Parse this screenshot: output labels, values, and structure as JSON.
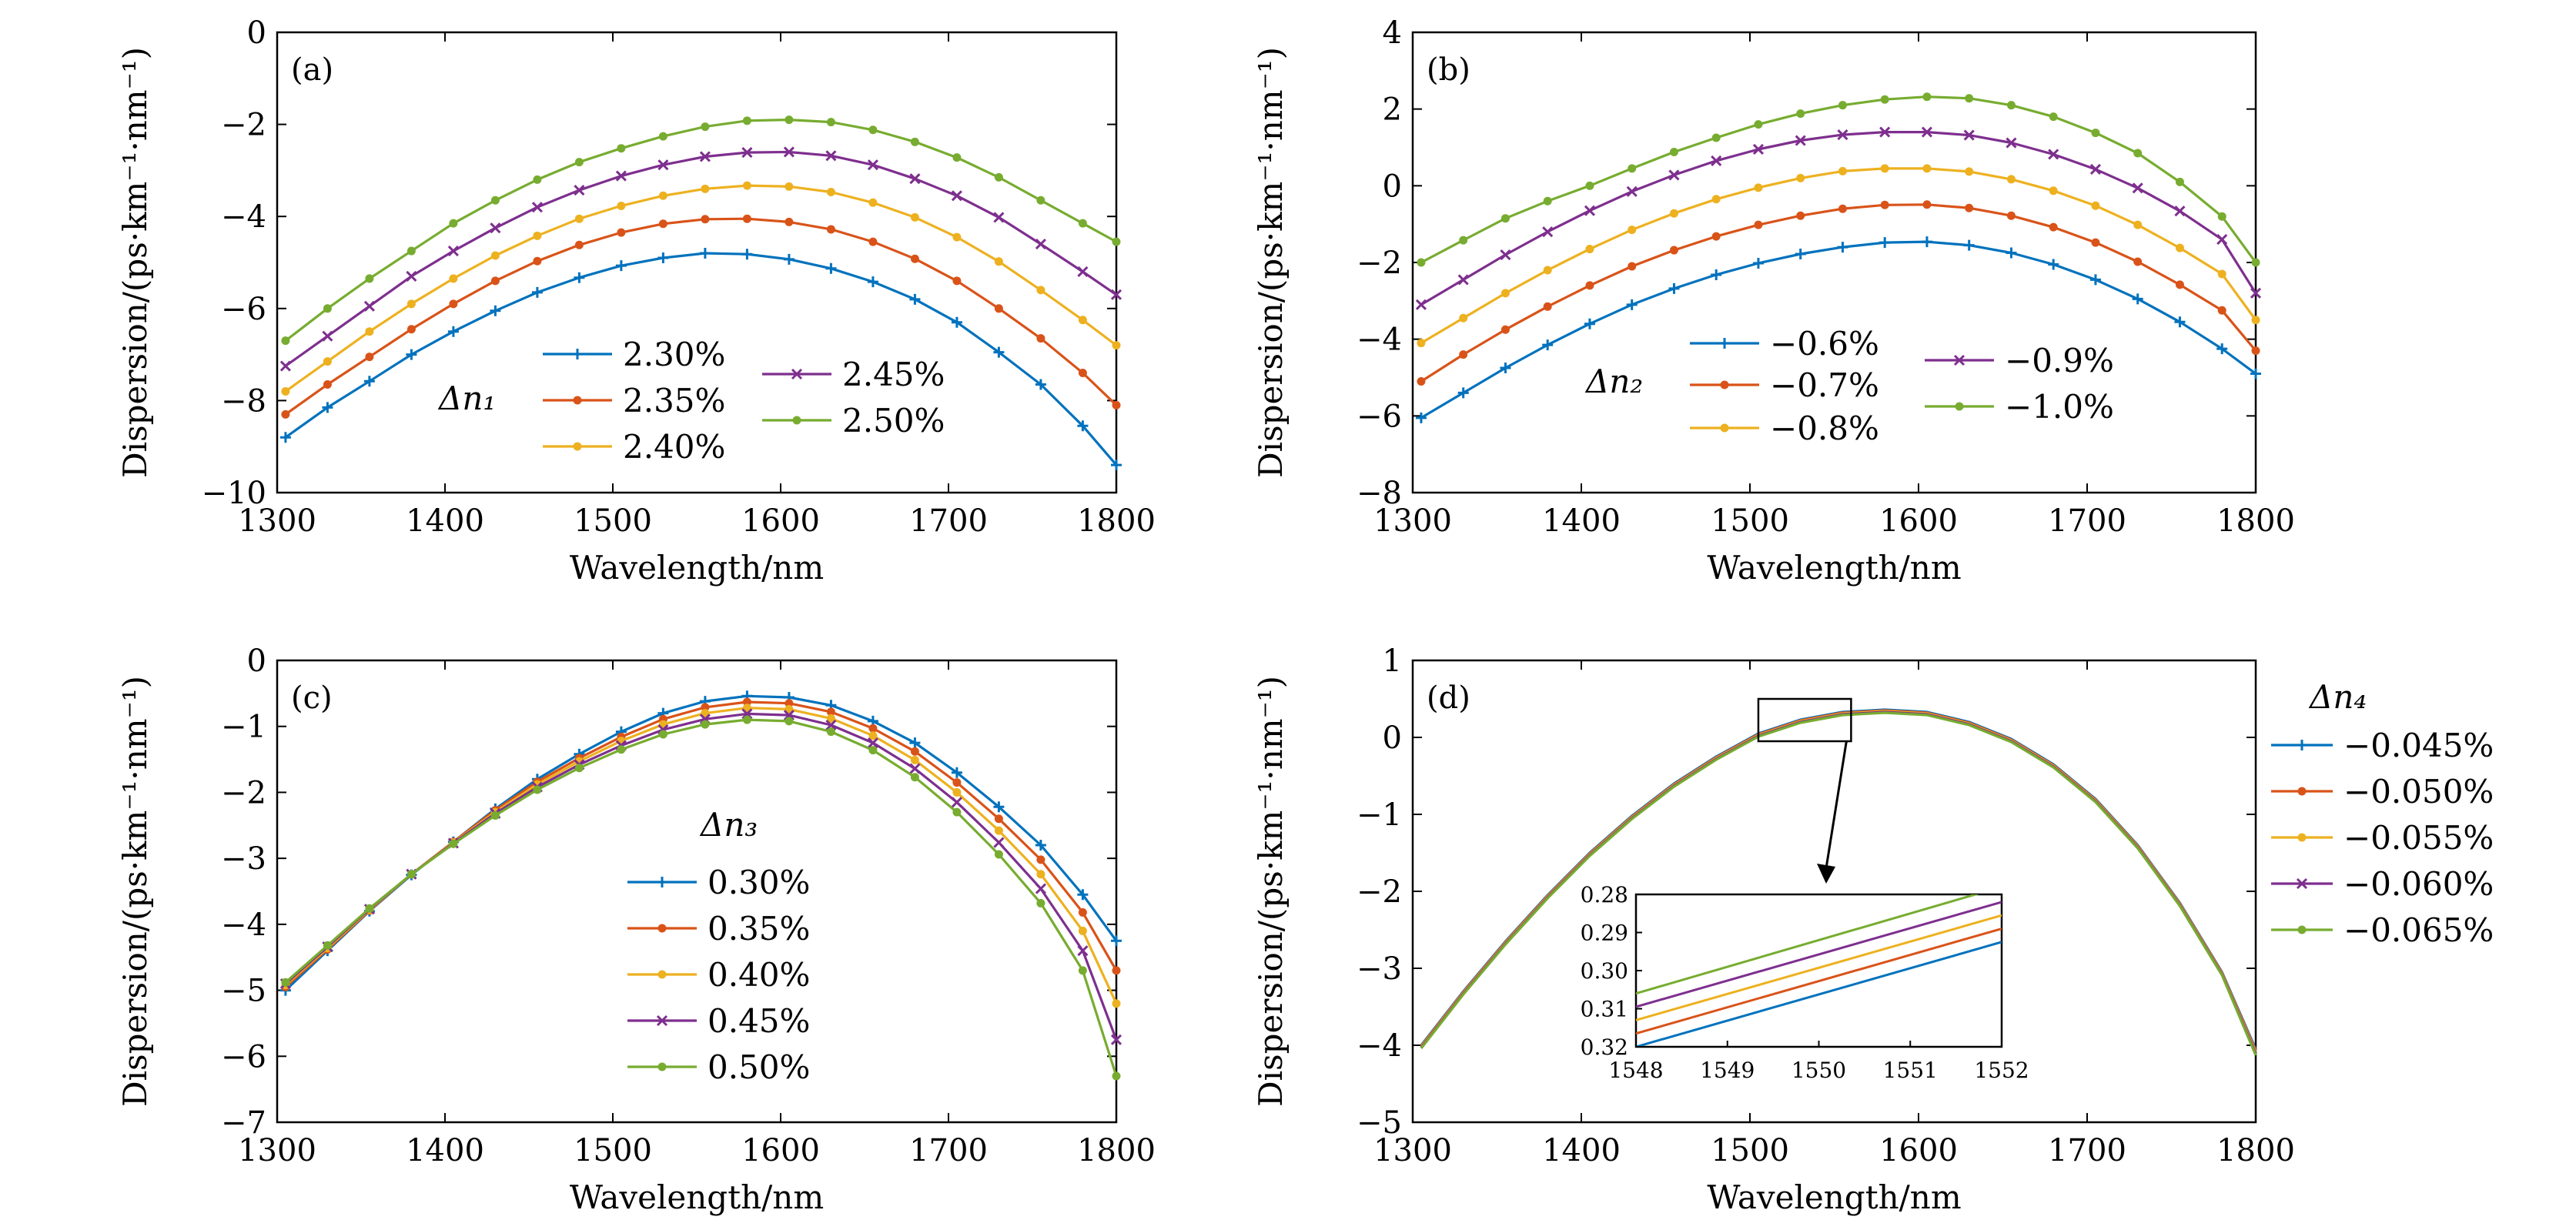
{
  "chart_data": [
    {
      "type": "line",
      "panel_label": "(a)",
      "xlabel": "Wavelength/nm",
      "ylabel": "Dispersion/(ps·km⁻¹·nm⁻¹)",
      "xlim": [
        1300,
        1800
      ],
      "ylim": [
        -10,
        0
      ],
      "xticks": [
        1300,
        1400,
        1500,
        1600,
        1700,
        1800
      ],
      "yticks": [
        0,
        -2,
        -4,
        -6,
        -8,
        -10
      ],
      "grid": false,
      "legend": {
        "title": "Δn₁",
        "columns": 2,
        "placement": "lower-center"
      },
      "x": [
        1305,
        1330,
        1355,
        1380,
        1405,
        1430,
        1455,
        1480,
        1505,
        1530,
        1555,
        1580,
        1605,
        1630,
        1655,
        1680,
        1705,
        1730,
        1755,
        1780,
        1800
      ],
      "series": [
        {
          "name": "2.30%",
          "color": "#0072BD",
          "marker": "plus",
          "values": [
            -8.8,
            -8.15,
            -7.58,
            -7.0,
            -6.5,
            -6.05,
            -5.65,
            -5.33,
            -5.07,
            -4.9,
            -4.8,
            -4.82,
            -4.93,
            -5.13,
            -5.42,
            -5.8,
            -6.3,
            -6.95,
            -7.65,
            -8.55,
            -9.4
          ]
        },
        {
          "name": "2.35%",
          "color": "#D95319",
          "marker": "dot",
          "values": [
            -8.3,
            -7.65,
            -7.05,
            -6.45,
            -5.9,
            -5.4,
            -4.97,
            -4.62,
            -4.35,
            -4.16,
            -4.06,
            -4.05,
            -4.12,
            -4.28,
            -4.55,
            -4.92,
            -5.4,
            -6.0,
            -6.65,
            -7.4,
            -8.1
          ]
        },
        {
          "name": "2.40%",
          "color": "#EDB120",
          "marker": "dot",
          "values": [
            -7.8,
            -7.15,
            -6.5,
            -5.9,
            -5.35,
            -4.85,
            -4.42,
            -4.05,
            -3.77,
            -3.55,
            -3.4,
            -3.33,
            -3.35,
            -3.47,
            -3.7,
            -4.02,
            -4.45,
            -4.98,
            -5.6,
            -6.25,
            -6.8
          ]
        },
        {
          "name": "2.45%",
          "color": "#7E2F8E",
          "marker": "x",
          "values": [
            -7.25,
            -6.6,
            -5.95,
            -5.3,
            -4.75,
            -4.25,
            -3.8,
            -3.43,
            -3.12,
            -2.88,
            -2.7,
            -2.61,
            -2.6,
            -2.68,
            -2.88,
            -3.18,
            -3.55,
            -4.02,
            -4.6,
            -5.2,
            -5.7
          ]
        },
        {
          "name": "2.50%",
          "color": "#77AC30",
          "marker": "dot",
          "values": [
            -6.7,
            -6.0,
            -5.35,
            -4.75,
            -4.15,
            -3.65,
            -3.2,
            -2.82,
            -2.52,
            -2.26,
            -2.05,
            -1.92,
            -1.9,
            -1.95,
            -2.12,
            -2.38,
            -2.72,
            -3.15,
            -3.65,
            -4.15,
            -4.55
          ]
        }
      ]
    },
    {
      "type": "line",
      "panel_label": "(b)",
      "xlabel": "Wavelength/nm",
      "ylabel": "Dispersion/(ps·km⁻¹·nm⁻¹)",
      "xlim": [
        1300,
        1800
      ],
      "ylim": [
        -8,
        4
      ],
      "xticks": [
        1300,
        1400,
        1500,
        1600,
        1700,
        1800
      ],
      "yticks": [
        4,
        2,
        0,
        -2,
        -4,
        -6,
        -8
      ],
      "grid": false,
      "legend": {
        "title": "Δn₂",
        "columns": 2,
        "placement": "lower-center"
      },
      "x": [
        1305,
        1330,
        1355,
        1380,
        1405,
        1430,
        1455,
        1480,
        1505,
        1530,
        1555,
        1580,
        1605,
        1630,
        1655,
        1680,
        1705,
        1730,
        1755,
        1780,
        1800
      ],
      "series": [
        {
          "name": "−0.6%",
          "color": "#0072BD",
          "marker": "plus",
          "values": [
            -6.05,
            -5.4,
            -4.75,
            -4.15,
            -3.6,
            -3.1,
            -2.68,
            -2.32,
            -2.02,
            -1.78,
            -1.6,
            -1.48,
            -1.46,
            -1.55,
            -1.75,
            -2.05,
            -2.45,
            -2.95,
            -3.55,
            -4.25,
            -4.9
          ]
        },
        {
          "name": "−0.7%",
          "color": "#D95319",
          "marker": "dot",
          "values": [
            -5.1,
            -4.4,
            -3.75,
            -3.15,
            -2.6,
            -2.1,
            -1.68,
            -1.32,
            -1.02,
            -0.78,
            -0.6,
            -0.5,
            -0.49,
            -0.58,
            -0.78,
            -1.08,
            -1.48,
            -1.98,
            -2.58,
            -3.25,
            -4.3
          ]
        },
        {
          "name": "−0.8%",
          "color": "#EDB120",
          "marker": "dot",
          "values": [
            -4.1,
            -3.45,
            -2.8,
            -2.2,
            -1.65,
            -1.15,
            -0.72,
            -0.35,
            -0.05,
            0.2,
            0.38,
            0.45,
            0.45,
            0.37,
            0.17,
            -0.13,
            -0.52,
            -1.02,
            -1.62,
            -2.3,
            -3.5
          ]
        },
        {
          "name": "−0.9%",
          "color": "#7E2F8E",
          "marker": "x",
          "values": [
            -3.1,
            -2.45,
            -1.8,
            -1.2,
            -0.65,
            -0.15,
            0.28,
            0.65,
            0.95,
            1.18,
            1.33,
            1.4,
            1.4,
            1.32,
            1.12,
            0.82,
            0.43,
            -0.06,
            -0.66,
            -1.4,
            -2.8
          ]
        },
        {
          "name": "−1.0%",
          "color": "#77AC30",
          "marker": "dot",
          "values": [
            -2.0,
            -1.42,
            -0.85,
            -0.4,
            0.0,
            0.45,
            0.88,
            1.25,
            1.6,
            1.88,
            2.1,
            2.25,
            2.32,
            2.28,
            2.1,
            1.8,
            1.38,
            0.85,
            0.1,
            -0.8,
            -2.0
          ]
        }
      ]
    },
    {
      "type": "line",
      "panel_label": "(c)",
      "xlabel": "Wavelength/nm",
      "ylabel": "Dispersion/(ps·km⁻¹·nm⁻¹)",
      "xlim": [
        1300,
        1800
      ],
      "ylim": [
        -7,
        0
      ],
      "xticks": [
        1300,
        1400,
        1500,
        1600,
        1700,
        1800
      ],
      "yticks": [
        0,
        -1,
        -2,
        -3,
        -4,
        -5,
        -6,
        -7
      ],
      "grid": false,
      "legend": {
        "title": "Δn₃",
        "columns": 1,
        "placement": "lower-center"
      },
      "x": [
        1305,
        1330,
        1355,
        1380,
        1405,
        1430,
        1455,
        1480,
        1505,
        1530,
        1555,
        1580,
        1605,
        1630,
        1655,
        1680,
        1705,
        1730,
        1755,
        1780,
        1800
      ],
      "series": [
        {
          "name": "0.30%",
          "color": "#0072BD",
          "marker": "plus",
          "values": [
            -5.0,
            -4.4,
            -3.8,
            -3.25,
            -2.75,
            -2.25,
            -1.8,
            -1.42,
            -1.08,
            -0.8,
            -0.62,
            -0.54,
            -0.56,
            -0.68,
            -0.92,
            -1.25,
            -1.7,
            -2.22,
            -2.8,
            -3.55,
            -4.25
          ]
        },
        {
          "name": "0.35%",
          "color": "#D95319",
          "marker": "dot",
          "values": [
            -4.95,
            -4.38,
            -3.79,
            -3.24,
            -2.75,
            -2.27,
            -1.84,
            -1.48,
            -1.16,
            -0.89,
            -0.71,
            -0.63,
            -0.65,
            -0.78,
            -1.03,
            -1.38,
            -1.85,
            -2.4,
            -3.02,
            -3.82,
            -4.7
          ]
        },
        {
          "name": "0.40%",
          "color": "#EDB120",
          "marker": "dot",
          "values": [
            -4.92,
            -4.36,
            -3.78,
            -3.24,
            -2.76,
            -2.3,
            -1.88,
            -1.53,
            -1.22,
            -0.97,
            -0.8,
            -0.72,
            -0.74,
            -0.88,
            -1.14,
            -1.51,
            -2.0,
            -2.58,
            -3.24,
            -4.1,
            -5.2
          ]
        },
        {
          "name": "0.45%",
          "color": "#7E2F8E",
          "marker": "x",
          "values": [
            -4.9,
            -4.34,
            -3.77,
            -3.24,
            -2.77,
            -2.32,
            -1.92,
            -1.58,
            -1.29,
            -1.05,
            -0.89,
            -0.81,
            -0.83,
            -0.98,
            -1.25,
            -1.64,
            -2.15,
            -2.76,
            -3.46,
            -4.4,
            -5.75
          ]
        },
        {
          "name": "0.50%",
          "color": "#77AC30",
          "marker": "dot",
          "values": [
            -4.88,
            -4.32,
            -3.76,
            -3.24,
            -2.78,
            -2.35,
            -1.96,
            -1.63,
            -1.35,
            -1.12,
            -0.97,
            -0.9,
            -0.92,
            -1.08,
            -1.36,
            -1.77,
            -2.3,
            -2.94,
            -3.68,
            -4.7,
            -6.3
          ]
        }
      ]
    },
    {
      "type": "line",
      "panel_label": "(d)",
      "xlabel": "Wavelength/nm",
      "ylabel": "Dispersion/(ps·km⁻¹·nm⁻¹)",
      "xlim": [
        1300,
        1800
      ],
      "ylim": [
        -5,
        1
      ],
      "xticks": [
        1300,
        1400,
        1500,
        1600,
        1700,
        1800
      ],
      "yticks": [
        1,
        0,
        -1,
        -2,
        -3,
        -4,
        -5
      ],
      "grid": false,
      "legend": {
        "title": "Δn₄",
        "columns": 1,
        "placement": "outside-right"
      },
      "x": [
        1305,
        1330,
        1355,
        1380,
        1405,
        1430,
        1455,
        1480,
        1505,
        1530,
        1555,
        1580,
        1605,
        1630,
        1655,
        1680,
        1705,
        1730,
        1755,
        1780,
        1800
      ],
      "series": [
        {
          "name": "−0.045%",
          "color": "#0072BD",
          "marker": "plus",
          "values": [
            -4.0,
            -3.3,
            -2.65,
            -2.05,
            -1.5,
            -1.02,
            -0.6,
            -0.25,
            0.05,
            0.23,
            0.33,
            0.36,
            0.33,
            0.2,
            -0.02,
            -0.35,
            -0.8,
            -1.4,
            -2.15,
            -3.05,
            -4.05
          ]
        },
        {
          "name": "−0.050%",
          "color": "#D95319",
          "marker": "dot",
          "values": [
            -4.01,
            -3.31,
            -2.66,
            -2.06,
            -1.51,
            -1.03,
            -0.61,
            -0.26,
            0.04,
            0.22,
            0.32,
            0.35,
            0.32,
            0.19,
            -0.03,
            -0.36,
            -0.81,
            -1.41,
            -2.16,
            -3.06,
            -4.07
          ]
        },
        {
          "name": "−0.055%",
          "color": "#EDB120",
          "marker": "dot",
          "values": [
            -4.02,
            -3.32,
            -2.67,
            -2.07,
            -1.52,
            -1.04,
            -0.62,
            -0.27,
            0.03,
            0.21,
            0.31,
            0.34,
            0.31,
            0.18,
            -0.04,
            -0.37,
            -0.82,
            -1.42,
            -2.17,
            -3.07,
            -4.09
          ]
        },
        {
          "name": "−0.060%",
          "color": "#7E2F8E",
          "marker": "x",
          "values": [
            -4.03,
            -3.33,
            -2.68,
            -2.08,
            -1.53,
            -1.05,
            -0.63,
            -0.28,
            0.02,
            0.2,
            0.3,
            0.33,
            0.3,
            0.17,
            -0.05,
            -0.38,
            -0.83,
            -1.43,
            -2.18,
            -3.08,
            -4.11
          ]
        },
        {
          "name": "−0.065%",
          "color": "#77AC30",
          "marker": "dot",
          "values": [
            -4.04,
            -3.34,
            -2.69,
            -2.09,
            -1.54,
            -1.06,
            -0.64,
            -0.29,
            0.01,
            0.19,
            0.29,
            0.32,
            0.29,
            0.16,
            -0.06,
            -0.39,
            -0.84,
            -1.44,
            -2.19,
            -3.09,
            -4.13
          ]
        }
      ],
      "inset": {
        "xlim": [
          1548,
          1552
        ],
        "ylim": [
          0.32,
          0.28
        ],
        "xticks": [
          1548,
          1549,
          1550,
          1551,
          1552
        ],
        "yticks": [
          "0.28",
          "0.29",
          "0.30",
          "0.31",
          "0.32"
        ],
        "series": [
          {
            "color": "#0072BD",
            "x": [
              1548,
              1552
            ],
            "values": [
              0.32,
              0.2925
            ]
          },
          {
            "color": "#D95319",
            "x": [
              1548,
              1552
            ],
            "values": [
              0.3165,
              0.289
            ]
          },
          {
            "color": "#EDB120",
            "x": [
              1548,
              1552
            ],
            "values": [
              0.313,
              0.2855
            ]
          },
          {
            "color": "#7E2F8E",
            "x": [
              1548,
              1552
            ],
            "values": [
              0.3095,
              0.282
            ]
          },
          {
            "color": "#77AC30",
            "x": [
              1548,
              1552
            ],
            "values": [
              0.306,
              0.278
            ]
          }
        ]
      }
    }
  ]
}
